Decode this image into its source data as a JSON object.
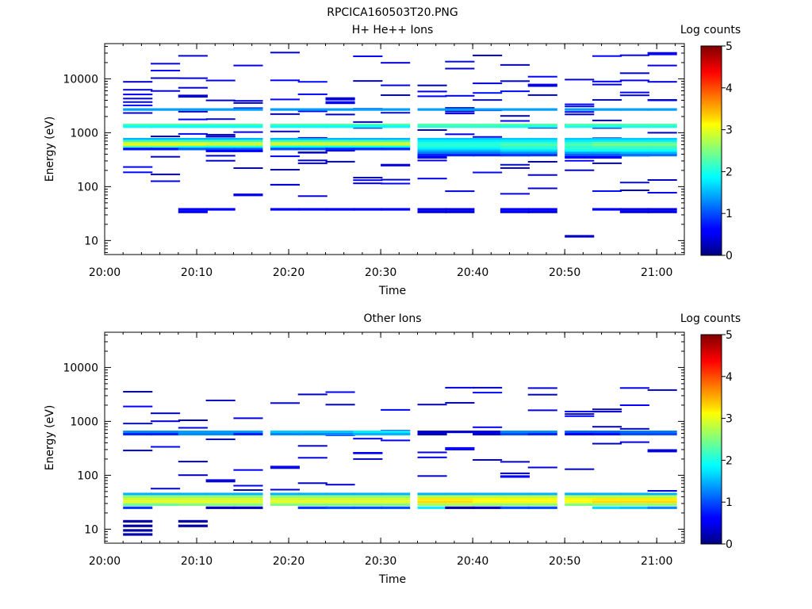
{
  "figure": {
    "title": "RPCICA160503T20.PNG"
  },
  "chart_data": [
    {
      "type": "heatmap",
      "title": "H+ He++ Ions",
      "xlabel": "Time",
      "ylabel": "Energy (eV)",
      "yscale": "log",
      "xlim": [
        "20:00",
        "21:03"
      ],
      "ylim": [
        5.5,
        45000
      ],
      "x_ticks": [
        "20:00",
        "20:10",
        "20:20",
        "20:30",
        "20:40",
        "20:50",
        "21:00"
      ],
      "y_ticks": [
        "10",
        "100",
        "1000",
        "10000"
      ],
      "colorbar": {
        "label": "Log counts",
        "range": [
          0,
          5
        ],
        "ticks": [
          "0",
          "1",
          "2",
          "3",
          "4",
          "5"
        ]
      },
      "time_bin_minutes": 3.2,
      "time_bins_start": [
        "20:02",
        "20:05",
        "20:08",
        "20:11",
        "20:14",
        "20:18",
        "20:21",
        "20:24",
        "20:27",
        "20:30",
        "20:34",
        "20:37",
        "20:40",
        "20:43",
        "20:46",
        "20:50",
        "20:53",
        "20:56",
        "20:59"
      ],
      "cells": [
        {
          "e": 1400,
          "v": [
            2.3,
            2.3,
            2.3,
            2.3,
            2.3,
            2.3,
            2.3,
            2.3,
            2.3,
            2.3,
            2.3,
            2.3,
            2.3,
            2.3,
            2.3,
            2.3,
            2.3,
            2.3,
            2.3
          ]
        },
        {
          "e": 1300,
          "v": [
            1.9,
            1.9,
            1.9,
            1.9,
            1.9,
            1.9,
            1.9,
            1.9,
            1.9,
            1.9,
            2.1,
            2.1,
            2.1,
            2.0,
            2.0,
            2.0,
            2.0,
            2.0,
            2.0
          ]
        },
        {
          "e": 2700,
          "v": [
            1.4,
            1.4,
            1.4,
            1.4,
            1.4,
            1.4,
            1.4,
            1.4,
            1.4,
            1.4,
            1.4,
            1.4,
            1.4,
            1.4,
            1.4,
            1.4,
            1.4,
            1.4,
            1.4
          ]
        },
        {
          "e": 760,
          "v": [
            1.5,
            1.5,
            1.5,
            1.5,
            1.5,
            1.5,
            1.5,
            1.5,
            1.5,
            1.5,
            1.6,
            1.6,
            1.6,
            1.6,
            1.6,
            1.6,
            1.6,
            1.6,
            1.6
          ]
        },
        {
          "e": 700,
          "v": [
            2.1,
            2.1,
            2.1,
            2.1,
            2.1,
            2.1,
            2.1,
            2.1,
            2.1,
            2.1,
            1.8,
            1.8,
            1.8,
            1.8,
            1.8,
            1.8,
            1.8,
            1.8,
            1.8
          ]
        },
        {
          "e": 640,
          "v": [
            2.9,
            2.9,
            2.9,
            2.9,
            2.9,
            2.9,
            2.9,
            2.9,
            2.9,
            2.9,
            2.0,
            2.0,
            2.0,
            2.1,
            2.1,
            2.1,
            2.3,
            2.3,
            2.3
          ]
        },
        {
          "e": 590,
          "v": [
            3.1,
            3.1,
            3.1,
            2.9,
            2.9,
            2.9,
            2.9,
            2.9,
            2.9,
            2.9,
            2.1,
            2.1,
            2.1,
            2.3,
            2.3,
            2.3,
            2.5,
            2.5,
            2.5
          ]
        },
        {
          "e": 545,
          "v": [
            2.2,
            2.2,
            2.0,
            2.0,
            2.0,
            1.9,
            1.9,
            1.9,
            1.9,
            1.9,
            2.0,
            2.0,
            2.0,
            2.1,
            2.1,
            2.1,
            2.2,
            2.2,
            2.2
          ]
        },
        {
          "e": 500,
          "v": [
            0.7,
            0.7,
            1.1,
            1.1,
            1.1,
            1.0,
            1.0,
            0.8,
            0.8,
            0.8,
            1.8,
            1.8,
            1.8,
            2.0,
            2.0,
            2.1,
            2.1,
            2.1,
            2.1
          ]
        },
        {
          "e": 460,
          "v": [
            0,
            0,
            0,
            0.6,
            0.6,
            0,
            0,
            0,
            0,
            0,
            1.5,
            1.5,
            1.5,
            1.7,
            1.7,
            1.9,
            1.9,
            1.9,
            1.9
          ]
        },
        {
          "e": 420,
          "v": [
            0,
            0,
            0,
            0,
            0,
            0,
            0,
            0,
            0,
            0,
            1.2,
            1.2,
            1.2,
            1.3,
            1.3,
            1.4,
            1.4,
            1.5,
            1.5
          ]
        },
        {
          "e": 385,
          "v": [
            0,
            0,
            0,
            0,
            0,
            0,
            0,
            0,
            0,
            0,
            0.8,
            0.8,
            0.8,
            0.9,
            0.9,
            1.1,
            1.1,
            1.2,
            1.2
          ]
        },
        {
          "e": 350,
          "v": [
            0,
            0,
            0,
            0,
            0,
            0,
            0,
            0,
            0,
            0,
            0.5,
            0,
            0,
            0,
            0,
            0.6,
            0.6,
            0,
            0
          ]
        },
        {
          "e": 38,
          "v": [
            0,
            0,
            0.6,
            0.6,
            0,
            0.6,
            0.6,
            0.6,
            0.6,
            0.6,
            0.5,
            0.5,
            0,
            0.6,
            0.6,
            0,
            0.6,
            0.5,
            0.5
          ]
        },
        {
          "e": 34,
          "v": [
            0,
            0,
            0.6,
            0,
            0,
            0,
            0,
            0,
            0,
            0,
            0.5,
            0.5,
            0,
            0.6,
            0.5,
            0,
            0,
            0.5,
            0.5
          ]
        },
        {
          "e": 12,
          "v": [
            0,
            0,
            0,
            0,
            0,
            0,
            0,
            0,
            0,
            0,
            0,
            0,
            0,
            0,
            0,
            0.3,
            0,
            0,
            0
          ]
        }
      ],
      "scattered_low": true
    },
    {
      "type": "heatmap",
      "title": "Other Ions",
      "xlabel": "Time",
      "ylabel": "Energy (eV)",
      "yscale": "log",
      "xlim": [
        "20:00",
        "21:03"
      ],
      "ylim": [
        5.5,
        45000
      ],
      "x_ticks": [
        "20:00",
        "20:10",
        "20:20",
        "20:30",
        "20:40",
        "20:50",
        "21:00"
      ],
      "y_ticks": [
        "10",
        "100",
        "1000",
        "10000"
      ],
      "colorbar": {
        "label": "Log counts",
        "range": [
          0,
          5
        ],
        "ticks": [
          "0",
          "1",
          "2",
          "3",
          "4",
          "5"
        ]
      },
      "time_bin_minutes": 3.2,
      "time_bins_start": [
        "20:02",
        "20:05",
        "20:08",
        "20:11",
        "20:14",
        "20:18",
        "20:21",
        "20:24",
        "20:27",
        "20:30",
        "20:34",
        "20:37",
        "20:40",
        "20:43",
        "20:46",
        "20:50",
        "20:53",
        "20:56",
        "20:59"
      ],
      "cells": [
        {
          "e": 640,
          "v": [
            1.3,
            1.3,
            1.4,
            1.4,
            1.4,
            1.6,
            1.6,
            1.6,
            1.8,
            1.8,
            0.4,
            0.4,
            0.5,
            1.3,
            1.3,
            1.1,
            1.1,
            1.2,
            1.2
          ]
        },
        {
          "e": 580,
          "v": [
            0.8,
            0.8,
            1.3,
            1.3,
            0.8,
            1.3,
            1.3,
            1.3,
            1.5,
            1.5,
            0.3,
            0,
            0.4,
            1.0,
            0.8,
            0.6,
            0.7,
            1.0,
            1.0
          ]
        },
        {
          "e": 45,
          "v": [
            1.5,
            1.5,
            1.5,
            1.5,
            1.5,
            1.5,
            1.5,
            1.5,
            1.5,
            1.5,
            1.5,
            1.5,
            1.5,
            1.5,
            1.5,
            1.5,
            1.5,
            1.5,
            1.5
          ]
        },
        {
          "e": 40,
          "v": [
            2.6,
            2.6,
            2.6,
            2.6,
            2.6,
            2.6,
            2.6,
            2.6,
            2.6,
            2.6,
            2.8,
            2.8,
            2.8,
            2.8,
            2.8,
            2.8,
            2.8,
            2.8,
            2.8
          ]
        },
        {
          "e": 36,
          "v": [
            2.9,
            2.9,
            2.9,
            2.9,
            2.9,
            2.9,
            2.9,
            2.9,
            2.9,
            2.9,
            3.2,
            3.2,
            3.1,
            3.1,
            3.1,
            3.1,
            3.2,
            3.2,
            3.2
          ]
        },
        {
          "e": 32,
          "v": [
            3.0,
            3.0,
            3.0,
            3.0,
            3.0,
            3.0,
            3.0,
            3.0,
            3.0,
            3.0,
            3.3,
            3.3,
            3.1,
            3.1,
            3.1,
            3.1,
            3.3,
            3.3,
            3.3
          ]
        },
        {
          "e": 28.5,
          "v": [
            2.4,
            2.4,
            2.5,
            2.5,
            2.5,
            2.5,
            2.5,
            2.5,
            2.5,
            2.5,
            2.7,
            2.7,
            2.6,
            2.6,
            2.6,
            2.5,
            2.6,
            2.6,
            2.6
          ]
        },
        {
          "e": 25,
          "v": [
            0.9,
            0,
            0,
            0.3,
            0.3,
            0,
            0.9,
            1.0,
            1.0,
            1.0,
            1.8,
            0.2,
            0.3,
            1.0,
            1.0,
            0,
            1.7,
            1.6,
            1.3
          ]
        },
        {
          "e": 14,
          "v": [
            0.2,
            0,
            0.2,
            0,
            0,
            0,
            0,
            0,
            0,
            0,
            0,
            0,
            0,
            0,
            0,
            0,
            0,
            0,
            0
          ]
        },
        {
          "e": 11.5,
          "v": [
            0.2,
            0,
            0.2,
            0,
            0,
            0,
            0,
            0,
            0,
            0,
            0,
            0,
            0,
            0,
            0,
            0,
            0,
            0,
            0
          ]
        },
        {
          "e": 9.5,
          "v": [
            0.2,
            0,
            0,
            0,
            0,
            0,
            0,
            0,
            0,
            0,
            0,
            0,
            0,
            0,
            0,
            0,
            0,
            0,
            0
          ]
        },
        {
          "e": 8.0,
          "v": [
            0.2,
            0,
            0,
            0,
            0,
            0,
            0,
            0,
            0,
            0,
            0,
            0,
            0,
            0,
            0,
            0,
            0,
            0,
            0
          ]
        }
      ],
      "scattered_low": true
    }
  ]
}
